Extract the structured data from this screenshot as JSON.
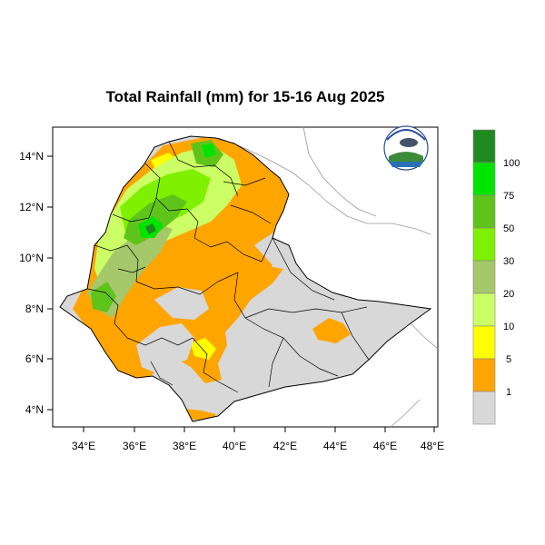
{
  "title": "Total Rainfall (mm) for 15-16 Aug 2025",
  "map": {
    "lon_range": [
      33,
      48.2
    ],
    "lat_range": [
      3.2,
      15
    ],
    "x_ticks": [
      "34°E",
      "36°E",
      "38°E",
      "40°E",
      "42°E",
      "44°E",
      "46°E",
      "48°E"
    ],
    "y_ticks": [
      "14°N",
      "12°N",
      "10°N",
      "8°N",
      "6°N",
      "4°N"
    ],
    "country": "Ethiopia",
    "logo": "national-meteorology-agency-logo"
  },
  "legend": {
    "labels": [
      "100",
      "75",
      "50",
      "30",
      "20",
      "10",
      "5",
      "1"
    ],
    "colors": [
      "#1f8a1f",
      "#00e400",
      "#5fc41a",
      "#7ff000",
      "#a5c86a",
      "#ccff66",
      "#ffff00",
      "#ffa500",
      "#d8d8d8"
    ]
  },
  "colors": {
    "no_rain": "#d8d8d8",
    "boundary": "#000000",
    "outside_border": "#999999"
  }
}
